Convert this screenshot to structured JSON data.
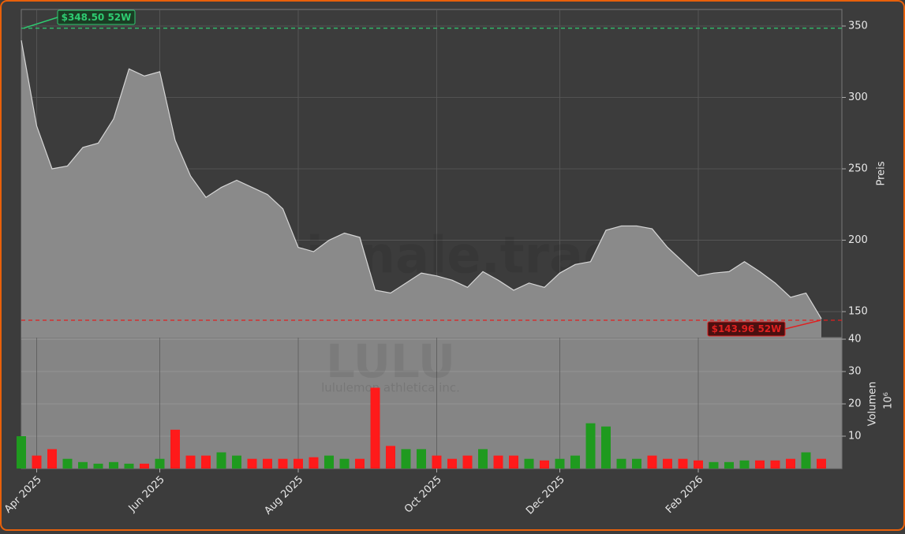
{
  "chart_data": [
    {
      "type": "area",
      "watermark": "forexsignale.trade",
      "ticker": "LULU",
      "company": "lululemon athletica inc.",
      "values": [
        340,
        280,
        250,
        252,
        265,
        268,
        285,
        320,
        315,
        318,
        270,
        245,
        230,
        237,
        242,
        237,
        232,
        222,
        195,
        192,
        200,
        205,
        202,
        165,
        163,
        170,
        177,
        175,
        172,
        167,
        178,
        172,
        165,
        170,
        167,
        177,
        183,
        185,
        207,
        210,
        210,
        208,
        195,
        185,
        175,
        177,
        178,
        185,
        178,
        170,
        160,
        163,
        145
      ],
      "color": "#8a8a8a",
      "line_color": "#d6d6d6",
      "ylim": [
        131.8,
        361.6
      ],
      "yticks": [
        150,
        200,
        250,
        300,
        350
      ],
      "ylabel": "Preis",
      "grid": true,
      "annotations": [
        {
          "text": "$348.50 52W",
          "value": 348.5,
          "color": "#2ecc71"
        },
        {
          "text": "$143.96 52W",
          "value": 143.96,
          "color": "#e02020"
        }
      ]
    },
    {
      "type": "bar",
      "categories": [
        null,
        "Apr 2025",
        null,
        null,
        null,
        null,
        null,
        null,
        null,
        "Jun 2025",
        null,
        null,
        null,
        null,
        null,
        null,
        null,
        null,
        "Aug 2025",
        null,
        null,
        null,
        null,
        null,
        null,
        null,
        null,
        "Oct 2025",
        null,
        null,
        null,
        null,
        null,
        null,
        null,
        "Dec 2025",
        null,
        null,
        null,
        null,
        null,
        null,
        null,
        null,
        "Feb 2026",
        null,
        null,
        null,
        null,
        null,
        null,
        null,
        null
      ],
      "values": [
        10,
        4,
        6,
        3,
        2,
        1.5,
        2,
        1.5,
        1.5,
        3,
        12,
        4,
        4,
        5,
        4,
        3,
        3,
        3,
        3,
        3.5,
        4,
        3,
        3,
        25,
        7,
        6,
        6,
        4,
        3,
        4,
        6,
        4,
        4,
        3,
        2.5,
        3,
        4,
        14,
        13,
        3,
        3,
        4,
        3,
        3,
        2.5,
        2,
        2,
        2.5,
        2.5,
        2.5,
        3,
        5,
        3
      ],
      "ylim": [
        0,
        40.5
      ],
      "yticks": [
        10,
        20,
        30,
        40
      ],
      "ylabel": "Volumen",
      "ylabel_scale": "10⁶",
      "up_color": "#1f9a1f",
      "down_color": "#ff1a1a",
      "grid": true
    }
  ]
}
